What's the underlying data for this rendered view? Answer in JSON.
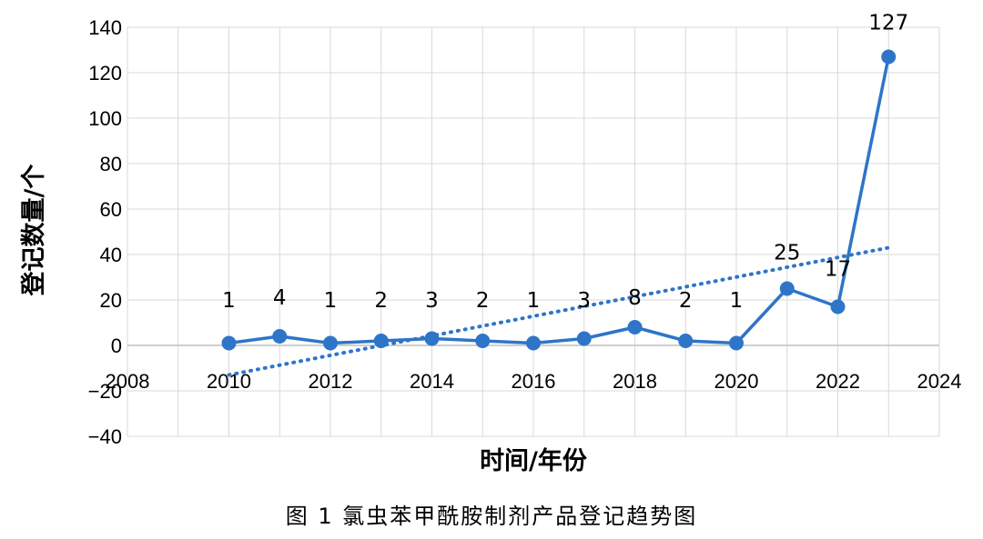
{
  "caption": "图 1 氯虫苯甲酰胺制剂产品登记趋势图",
  "chart_data": {
    "type": "line",
    "title": "",
    "xlabel": "时间/年份",
    "ylabel": "登记数量/个",
    "xlim": [
      2008,
      2024
    ],
    "ylim": [
      -40,
      140
    ],
    "x_ticks": [
      2008,
      2010,
      2012,
      2014,
      2016,
      2018,
      2020,
      2022,
      2024
    ],
    "y_ticks": [
      -40,
      -20,
      0,
      20,
      40,
      60,
      80,
      100,
      120,
      140
    ],
    "grid": true,
    "legend": "none",
    "series": [
      {
        "x": [
          2010,
          2011,
          2012,
          2013,
          2014,
          2015,
          2016,
          2017,
          2018,
          2019,
          2020,
          2021,
          2022,
          2023
        ],
        "values": [
          1,
          4,
          1,
          2,
          3,
          2,
          1,
          3,
          8,
          2,
          1,
          25,
          17,
          127
        ],
        "data_labels": [
          "1",
          "4",
          "1",
          "2",
          "3",
          "2",
          "1",
          "3",
          "8",
          "2",
          "1",
          "25",
          "17",
          "127"
        ],
        "color": "#2e75c8",
        "marker": "circle"
      }
    ],
    "trendline": {
      "style": "dotted",
      "color": "#2e75c8",
      "x": [
        2010,
        2023
      ],
      "y": [
        -13,
        43
      ]
    }
  }
}
